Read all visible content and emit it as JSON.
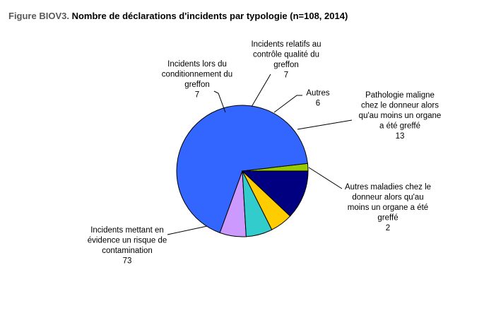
{
  "figure_prefix": "Figure BIOV3.",
  "figure_title": "Nombre de déclarations d'incidents par typologie (n=108, 2014)",
  "chart_data": {
    "type": "pie",
    "title": "Nombre de déclarations d'incidents par typologie (n=108, 2014)",
    "total": 108,
    "start_angle_deg": 90,
    "direction": "clockwise",
    "slices": [
      {
        "label_lines": [
          "Autres maladies chez le",
          "donneur alors qu'au",
          "moins un organe a été",
          "greffé"
        ],
        "value": 2,
        "color": "#99cc00"
      },
      {
        "label_lines": [
          "Incidents mettant en",
          "évidence un risque de",
          "contamination"
        ],
        "value": 73,
        "color": "#3366ff"
      },
      {
        "label_lines": [
          "Incidents lors du",
          "conditionnement du",
          "greffon"
        ],
        "value": 7,
        "color": "#cc99ff"
      },
      {
        "label_lines": [
          "Incidents relatifs au",
          "contrôle qualité du",
          "greffon"
        ],
        "value": 7,
        "color": "#33cccc"
      },
      {
        "label_lines": [
          "Autres"
        ],
        "value": 6,
        "color": "#ffcc00"
      },
      {
        "label_lines": [
          "Pathologie maligne",
          "chez le donneur alors",
          "qu'au moins un organe",
          "a été greffé"
        ],
        "value": 13,
        "color": "#000080"
      }
    ]
  }
}
